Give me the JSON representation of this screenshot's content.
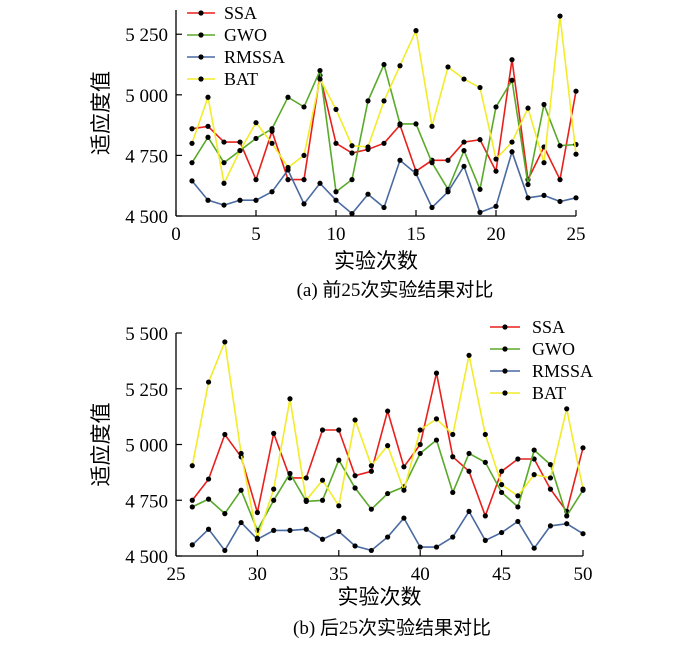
{
  "chart_data": [
    {
      "type": "line",
      "caption": "(a)  前25次实验结果对比",
      "xlabel": "实验次数",
      "ylabel": "适应度值",
      "xlim": [
        0,
        25
      ],
      "ylim": [
        4500,
        5350
      ],
      "xticks": [
        0,
        5,
        10,
        15,
        20,
        25
      ],
      "yticks": [
        4500,
        4750,
        5000,
        5250
      ],
      "ytick_labels": [
        "4 500",
        "4 750",
        "5 000",
        "5 250"
      ],
      "legend_position": "top-left",
      "x": [
        1,
        2,
        3,
        4,
        5,
        6,
        7,
        8,
        9,
        10,
        11,
        12,
        13,
        14,
        15,
        16,
        17,
        18,
        19,
        20,
        21,
        22,
        23,
        24,
        25
      ],
      "series": [
        {
          "name": "SSA",
          "color": "#e8201c",
          "values": [
            4860,
            4870,
            4805,
            4805,
            4650,
            4850,
            4650,
            4650,
            5080,
            4800,
            4760,
            4775,
            4800,
            4875,
            4685,
            4730,
            4730,
            4805,
            4815,
            4685,
            5145,
            4650,
            4785,
            4650,
            5015
          ]
        },
        {
          "name": "GWO",
          "color": "#5aaa2a",
          "values": [
            4720,
            4825,
            4720,
            4770,
            4820,
            4860,
            4990,
            4950,
            5100,
            4600,
            4650,
            4975,
            5125,
            4880,
            4880,
            4720,
            4610,
            4770,
            4610,
            4950,
            5060,
            4630,
            4960,
            4790,
            4795
          ]
        },
        {
          "name": "RMSSA",
          "color": "#4a6aa0",
          "values": [
            4645,
            4565,
            4545,
            4565,
            4565,
            4600,
            4690,
            4550,
            4635,
            4565,
            4510,
            4590,
            4535,
            4730,
            4675,
            4535,
            4600,
            4705,
            4515,
            4540,
            4765,
            4575,
            4585,
            4560,
            4575
          ]
        },
        {
          "name": "BAT",
          "color": "#f2ec2a",
          "values": [
            4800,
            4990,
            4635,
            4770,
            4885,
            4800,
            4700,
            4750,
            5065,
            4940,
            4790,
            4785,
            4975,
            5120,
            5265,
            4870,
            5115,
            5065,
            5030,
            4735,
            4805,
            4945,
            4720,
            5325,
            4755
          ]
        }
      ]
    },
    {
      "type": "line",
      "caption": "(b)  后25次实验结果对比",
      "xlabel": "实验次数",
      "ylabel": "适应度值",
      "xlim": [
        25,
        50
      ],
      "ylim": [
        4500,
        5500
      ],
      "xticks": [
        25,
        30,
        35,
        40,
        45,
        50
      ],
      "yticks": [
        4500,
        4750,
        5000,
        5250,
        5500
      ],
      "ytick_labels": [
        "4 500",
        "4 750",
        "5 000",
        "5 250",
        "5 500"
      ],
      "legend_position": "top-right",
      "x": [
        26,
        27,
        28,
        29,
        30,
        31,
        32,
        33,
        34,
        35,
        36,
        37,
        38,
        39,
        40,
        41,
        42,
        43,
        44,
        45,
        46,
        47,
        48,
        49,
        50
      ],
      "series": [
        {
          "name": "SSA",
          "color": "#e8201c",
          "values": [
            4750,
            4845,
            5045,
            4945,
            4695,
            5050,
            4850,
            4850,
            5065,
            5065,
            4860,
            4880,
            5150,
            4900,
            5000,
            5320,
            4945,
            4880,
            4680,
            4880,
            4935,
            4935,
            4800,
            4700,
            4985
          ]
        },
        {
          "name": "GWO",
          "color": "#5aaa2a",
          "values": [
            4720,
            4755,
            4690,
            4795,
            4615,
            4750,
            4870,
            4745,
            4750,
            4930,
            4805,
            4710,
            4780,
            4810,
            4960,
            5020,
            4785,
            4960,
            4920,
            4785,
            4720,
            4975,
            4910,
            4680,
            4795
          ]
        },
        {
          "name": "RMSSA",
          "color": "#4a6aa0",
          "values": [
            4550,
            4620,
            4525,
            4650,
            4575,
            4615,
            4615,
            4620,
            4575,
            4610,
            4545,
            4525,
            4585,
            4670,
            4540,
            4540,
            4585,
            4700,
            4570,
            4605,
            4655,
            4535,
            4635,
            4645,
            4600
          ]
        },
        {
          "name": "BAT",
          "color": "#f2ec2a",
          "values": [
            4905,
            5280,
            5460,
            4960,
            4580,
            4800,
            5205,
            4750,
            4840,
            4725,
            5110,
            4905,
            4995,
            4795,
            5065,
            5115,
            5045,
            5400,
            5045,
            4820,
            4770,
            4865,
            4850,
            5160,
            4800
          ]
        }
      ]
    }
  ]
}
